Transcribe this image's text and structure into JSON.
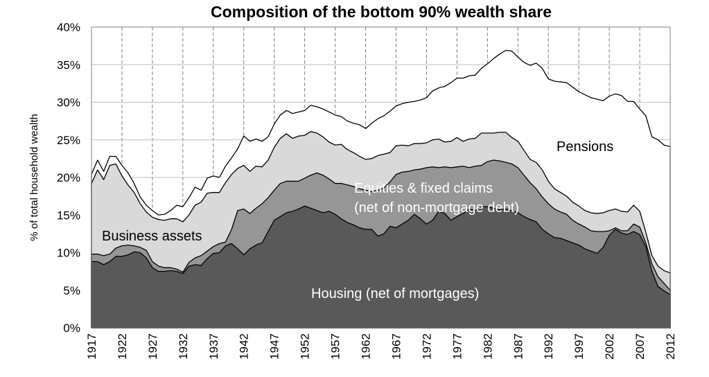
{
  "chart_data": {
    "type": "area",
    "title": "Composition of the bottom 90% wealth share",
    "ylabel": "% of total household wealth",
    "xlabel": "",
    "xlim": [
      1917,
      2012
    ],
    "ylim": [
      0,
      40
    ],
    "y_ticks": [
      "0%",
      "5%",
      "10%",
      "15%",
      "20%",
      "25%",
      "30%",
      "35%",
      "40%"
    ],
    "x_ticks": [
      "1917",
      "1922",
      "1927",
      "1932",
      "1937",
      "1942",
      "1947",
      "1952",
      "1957",
      "1962",
      "1967",
      "1972",
      "1977",
      "1982",
      "1987",
      "1992",
      "1997",
      "2002",
      "2007",
      "2012"
    ],
    "stacking": "cumulative",
    "annotations": [
      {
        "text": "Pensions",
        "color": "#000000"
      },
      {
        "text": "Equities & fixed claims",
        "color": "#ffffff"
      },
      {
        "text": "(net of non-mortgage debt)",
        "color": "#ffffff"
      },
      {
        "text": "Business assets",
        "color": "#000000"
      },
      {
        "text": "Housing (net of mortgages)",
        "color": "#ffffff"
      }
    ],
    "colors": {
      "housing": "#595959",
      "business": "#969696",
      "equities": "#d9d9d9",
      "pensions": "#ffffff"
    },
    "x": [
      1917,
      1918,
      1919,
      1920,
      1921,
      1922,
      1923,
      1924,
      1925,
      1926,
      1927,
      1928,
      1929,
      1930,
      1931,
      1932,
      1933,
      1934,
      1935,
      1936,
      1937,
      1938,
      1939,
      1940,
      1941,
      1942,
      1943,
      1944,
      1945,
      1946,
      1947,
      1948,
      1949,
      1950,
      1951,
      1952,
      1953,
      1954,
      1955,
      1956,
      1957,
      1958,
      1959,
      1960,
      1961,
      1962,
      1963,
      1964,
      1965,
      1966,
      1967,
      1968,
      1969,
      1970,
      1971,
      1972,
      1973,
      1974,
      1975,
      1976,
      1977,
      1978,
      1979,
      1980,
      1981,
      1982,
      1983,
      1984,
      1985,
      1986,
      1987,
      1988,
      1989,
      1990,
      1991,
      1992,
      1993,
      1994,
      1995,
      1996,
      1997,
      1998,
      1999,
      2000,
      2001,
      2002,
      2003,
      2004,
      2005,
      2006,
      2007,
      2008,
      2009,
      2010,
      2011,
      2012
    ],
    "series": [
      {
        "name": "Housing (net of mortgages)",
        "cumulative": [
          8.8,
          8.8,
          8.4,
          8.8,
          9.5,
          9.5,
          9.7,
          10.1,
          10.0,
          9.3,
          8.0,
          7.5,
          7.5,
          7.6,
          7.5,
          7.2,
          8.2,
          8.4,
          8.3,
          9.2,
          9.9,
          10.0,
          10.9,
          11.2,
          10.5,
          9.7,
          10.5,
          11.0,
          11.3,
          12.8,
          14.3,
          14.8,
          15.3,
          15.5,
          15.8,
          16.2,
          15.9,
          15.6,
          15.3,
          15.5,
          15.1,
          14.5,
          14.0,
          13.7,
          13.3,
          13.1,
          13.1,
          12.2,
          12.5,
          13.5,
          13.3,
          13.8,
          14.3,
          15.1,
          14.5,
          13.8,
          14.3,
          15.5,
          15.2,
          14.3,
          14.8,
          15.2,
          15.8,
          15.6,
          16.1,
          16.1,
          15.9,
          15.7,
          15.8,
          15.6,
          15.3,
          14.8,
          14.4,
          14.1,
          13.1,
          12.5,
          12.0,
          11.9,
          11.6,
          11.3,
          11.0,
          10.5,
          10.2,
          9.9,
          10.7,
          12.3,
          13.1,
          12.6,
          12.4,
          12.8,
          12.4,
          10.8,
          7.5,
          5.5,
          4.9,
          4.4,
          4.2
        ]
      },
      {
        "name": "Business assets",
        "cumulative": [
          9.8,
          9.8,
          9.6,
          9.8,
          10.6,
          10.9,
          11.0,
          10.9,
          10.7,
          10.3,
          8.8,
          8.2,
          8.0,
          8.0,
          7.8,
          7.4,
          8.7,
          9.3,
          9.6,
          10.2,
          10.8,
          11.2,
          11.4,
          13.1,
          15.6,
          15.8,
          15.2,
          15.9,
          16.5,
          17.3,
          18.3,
          19.2,
          19.5,
          19.5,
          19.5,
          19.9,
          20.3,
          20.6,
          20.3,
          19.8,
          19.2,
          19.2,
          19.0,
          18.8,
          18.5,
          18.3,
          18.1,
          18.3,
          18.6,
          19.4,
          20.4,
          20.7,
          20.8,
          21.0,
          21.1,
          21.3,
          21.4,
          21.3,
          21.4,
          21.3,
          21.4,
          21.5,
          21.3,
          21.5,
          21.6,
          22.1,
          22.3,
          22.2,
          22.0,
          21.8,
          21.3,
          20.3,
          19.3,
          18.5,
          17.4,
          16.5,
          15.8,
          15.4,
          15.1,
          14.3,
          13.8,
          13.4,
          12.9,
          12.8,
          12.8,
          12.9,
          13.3,
          12.9,
          12.9,
          13.8,
          13.4,
          11.3,
          8.5,
          6.8,
          5.9,
          5.0,
          4.5
        ]
      },
      {
        "name": "Equities & fixed claims (net of non-mortgage debt)",
        "cumulative": [
          19.2,
          21.0,
          19.7,
          21.6,
          21.8,
          20.2,
          19.0,
          18.0,
          16.5,
          15.4,
          14.7,
          14.4,
          14.3,
          14.5,
          14.5,
          14.1,
          15.0,
          16.3,
          16.7,
          17.9,
          18.0,
          18.0,
          19.3,
          20.4,
          21.2,
          21.6,
          20.8,
          21.5,
          21.4,
          22.3,
          24.0,
          25.2,
          25.8,
          25.2,
          25.5,
          25.6,
          26.1,
          25.9,
          25.4,
          24.7,
          24.3,
          24.4,
          23.7,
          23.3,
          22.8,
          22.4,
          22.5,
          22.9,
          23.1,
          23.3,
          24.2,
          24.3,
          24.2,
          24.5,
          24.5,
          24.6,
          25.0,
          25.1,
          24.7,
          24.8,
          25.3,
          24.8,
          25.1,
          25.2,
          25.9,
          25.9,
          25.9,
          26.0,
          26.0,
          25.3,
          24.8,
          23.6,
          22.4,
          22.0,
          21.0,
          19.5,
          18.5,
          18.0,
          17.5,
          16.7,
          16.2,
          15.6,
          15.3,
          15.2,
          15.3,
          15.6,
          15.8,
          15.5,
          15.4,
          16.3,
          15.5,
          12.7,
          9.6,
          8.2,
          7.6,
          7.3,
          6.8
        ]
      },
      {
        "name": "Pensions",
        "cumulative": [
          20.4,
          22.3,
          20.8,
          22.8,
          22.8,
          21.6,
          20.6,
          19.2,
          17.4,
          16.3,
          15.6,
          15.0,
          15.1,
          15.6,
          16.3,
          16.1,
          17.3,
          18.7,
          18.3,
          19.9,
          20.2,
          20.0,
          21.5,
          22.6,
          23.8,
          25.5,
          24.8,
          25.1,
          24.8,
          25.4,
          27.1,
          28.3,
          28.9,
          28.5,
          28.7,
          28.9,
          29.6,
          29.4,
          29.1,
          28.7,
          28.3,
          28.1,
          27.5,
          27.2,
          27.0,
          26.5,
          27.2,
          27.8,
          28.2,
          28.8,
          29.5,
          29.8,
          30.0,
          30.1,
          30.3,
          30.6,
          31.5,
          31.9,
          32.1,
          32.6,
          33.2,
          33.2,
          33.5,
          33.6,
          34.5,
          35.1,
          35.8,
          36.4,
          36.9,
          36.8,
          36.0,
          35.3,
          34.9,
          35.2,
          34.5,
          33.1,
          32.8,
          32.7,
          32.6,
          32.0,
          31.4,
          31.0,
          30.6,
          30.4,
          30.2,
          30.8,
          31.1,
          30.9,
          30.1,
          30.1,
          29.1,
          28.2,
          25.4,
          25.0,
          24.3,
          24.1,
          22.8
        ]
      }
    ]
  }
}
